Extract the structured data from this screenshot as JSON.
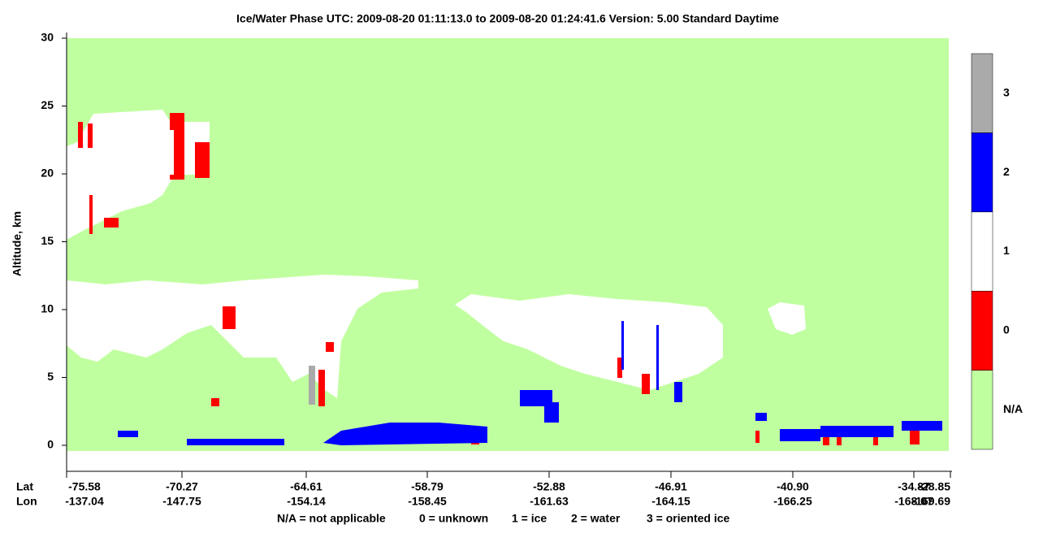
{
  "chart_data": {
    "type": "heatmap",
    "title": "Ice/Water Phase    UTC:  2009-08-20   01:11:13.0  to  2009-08-20   01:24:41.6    Version: 5.00  Standard Daytime",
    "ylabel": "Altitude, km",
    "ylim": [
      -2,
      30
    ],
    "yticks": [
      0,
      5,
      10,
      15,
      20,
      25,
      30
    ],
    "x_rows": [
      "Lat",
      "Lon"
    ],
    "lat": [
      -75.58,
      -70.27,
      -64.61,
      -58.79,
      -52.88,
      -46.91,
      {
        "value": -40.9,
        "label": "-40.90"
      },
      -34.87,
      -28.85
    ],
    "lon": [
      -137.04,
      -147.75,
      -154.14,
      -158.45,
      -161.63,
      -164.15,
      -166.25,
      -168.07,
      -169.69
    ],
    "colorbar": {
      "categories": [
        "N/A",
        "0",
        "1",
        "2",
        "3"
      ],
      "colors": [
        "#c0ffa0",
        "#ff0000",
        "#ffffff",
        "#0000ff",
        "#aaaaaa"
      ]
    },
    "legend": [
      "N/A = not applicable",
      "0 = unknown",
      "1 = ice",
      "2 = water",
      "3 = oriented ice"
    ]
  }
}
